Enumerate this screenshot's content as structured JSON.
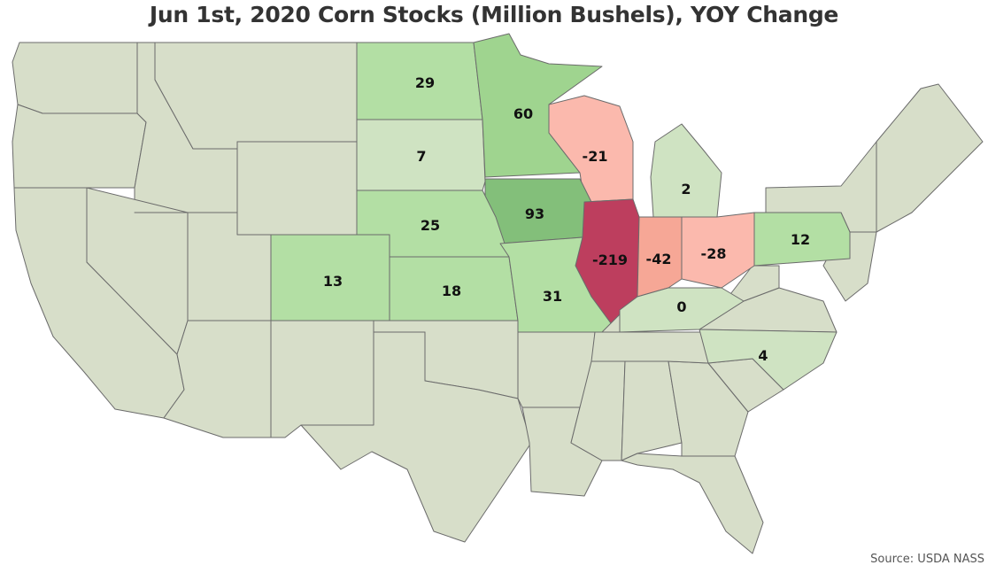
{
  "title": "Jun 1st, 2020 Corn Stocks (Million Bushels), YOY Change",
  "source": "Source: USDA NASS",
  "colors": {
    "neutral": "#d7dec9",
    "border": "#6b6b6b",
    "scale": {
      "strong_positive": "#83bf7a",
      "positive": "#9fd48f",
      "light_positive": "#b3dfa4",
      "faint_positive": "#cfe3c2",
      "light_negative": "#fbb9ad",
      "negative": "#f6a796",
      "strong_negative": "#bd3e5e"
    }
  },
  "chart_data": {
    "type": "choropleth",
    "title": "Jun 1st, 2020 Corn Stocks (Million Bushels), YOY Change",
    "unit": "Million Bushels",
    "states": [
      {
        "state": "North Dakota",
        "value": 29
      },
      {
        "state": "Minnesota",
        "value": 60
      },
      {
        "state": "South Dakota",
        "value": 7
      },
      {
        "state": "Wisconsin",
        "value": -21
      },
      {
        "state": "Michigan",
        "value": 2
      },
      {
        "state": "Iowa",
        "value": 93
      },
      {
        "state": "Nebraska",
        "value": 25
      },
      {
        "state": "Illinois",
        "value": -219
      },
      {
        "state": "Indiana",
        "value": -42
      },
      {
        "state": "Ohio",
        "value": -28
      },
      {
        "state": "Pennsylvania",
        "value": 12
      },
      {
        "state": "Colorado",
        "value": 13
      },
      {
        "state": "Kansas",
        "value": 18
      },
      {
        "state": "Missouri",
        "value": 31
      },
      {
        "state": "Kentucky",
        "value": 0
      },
      {
        "state": "North Carolina",
        "value": 4
      }
    ]
  }
}
